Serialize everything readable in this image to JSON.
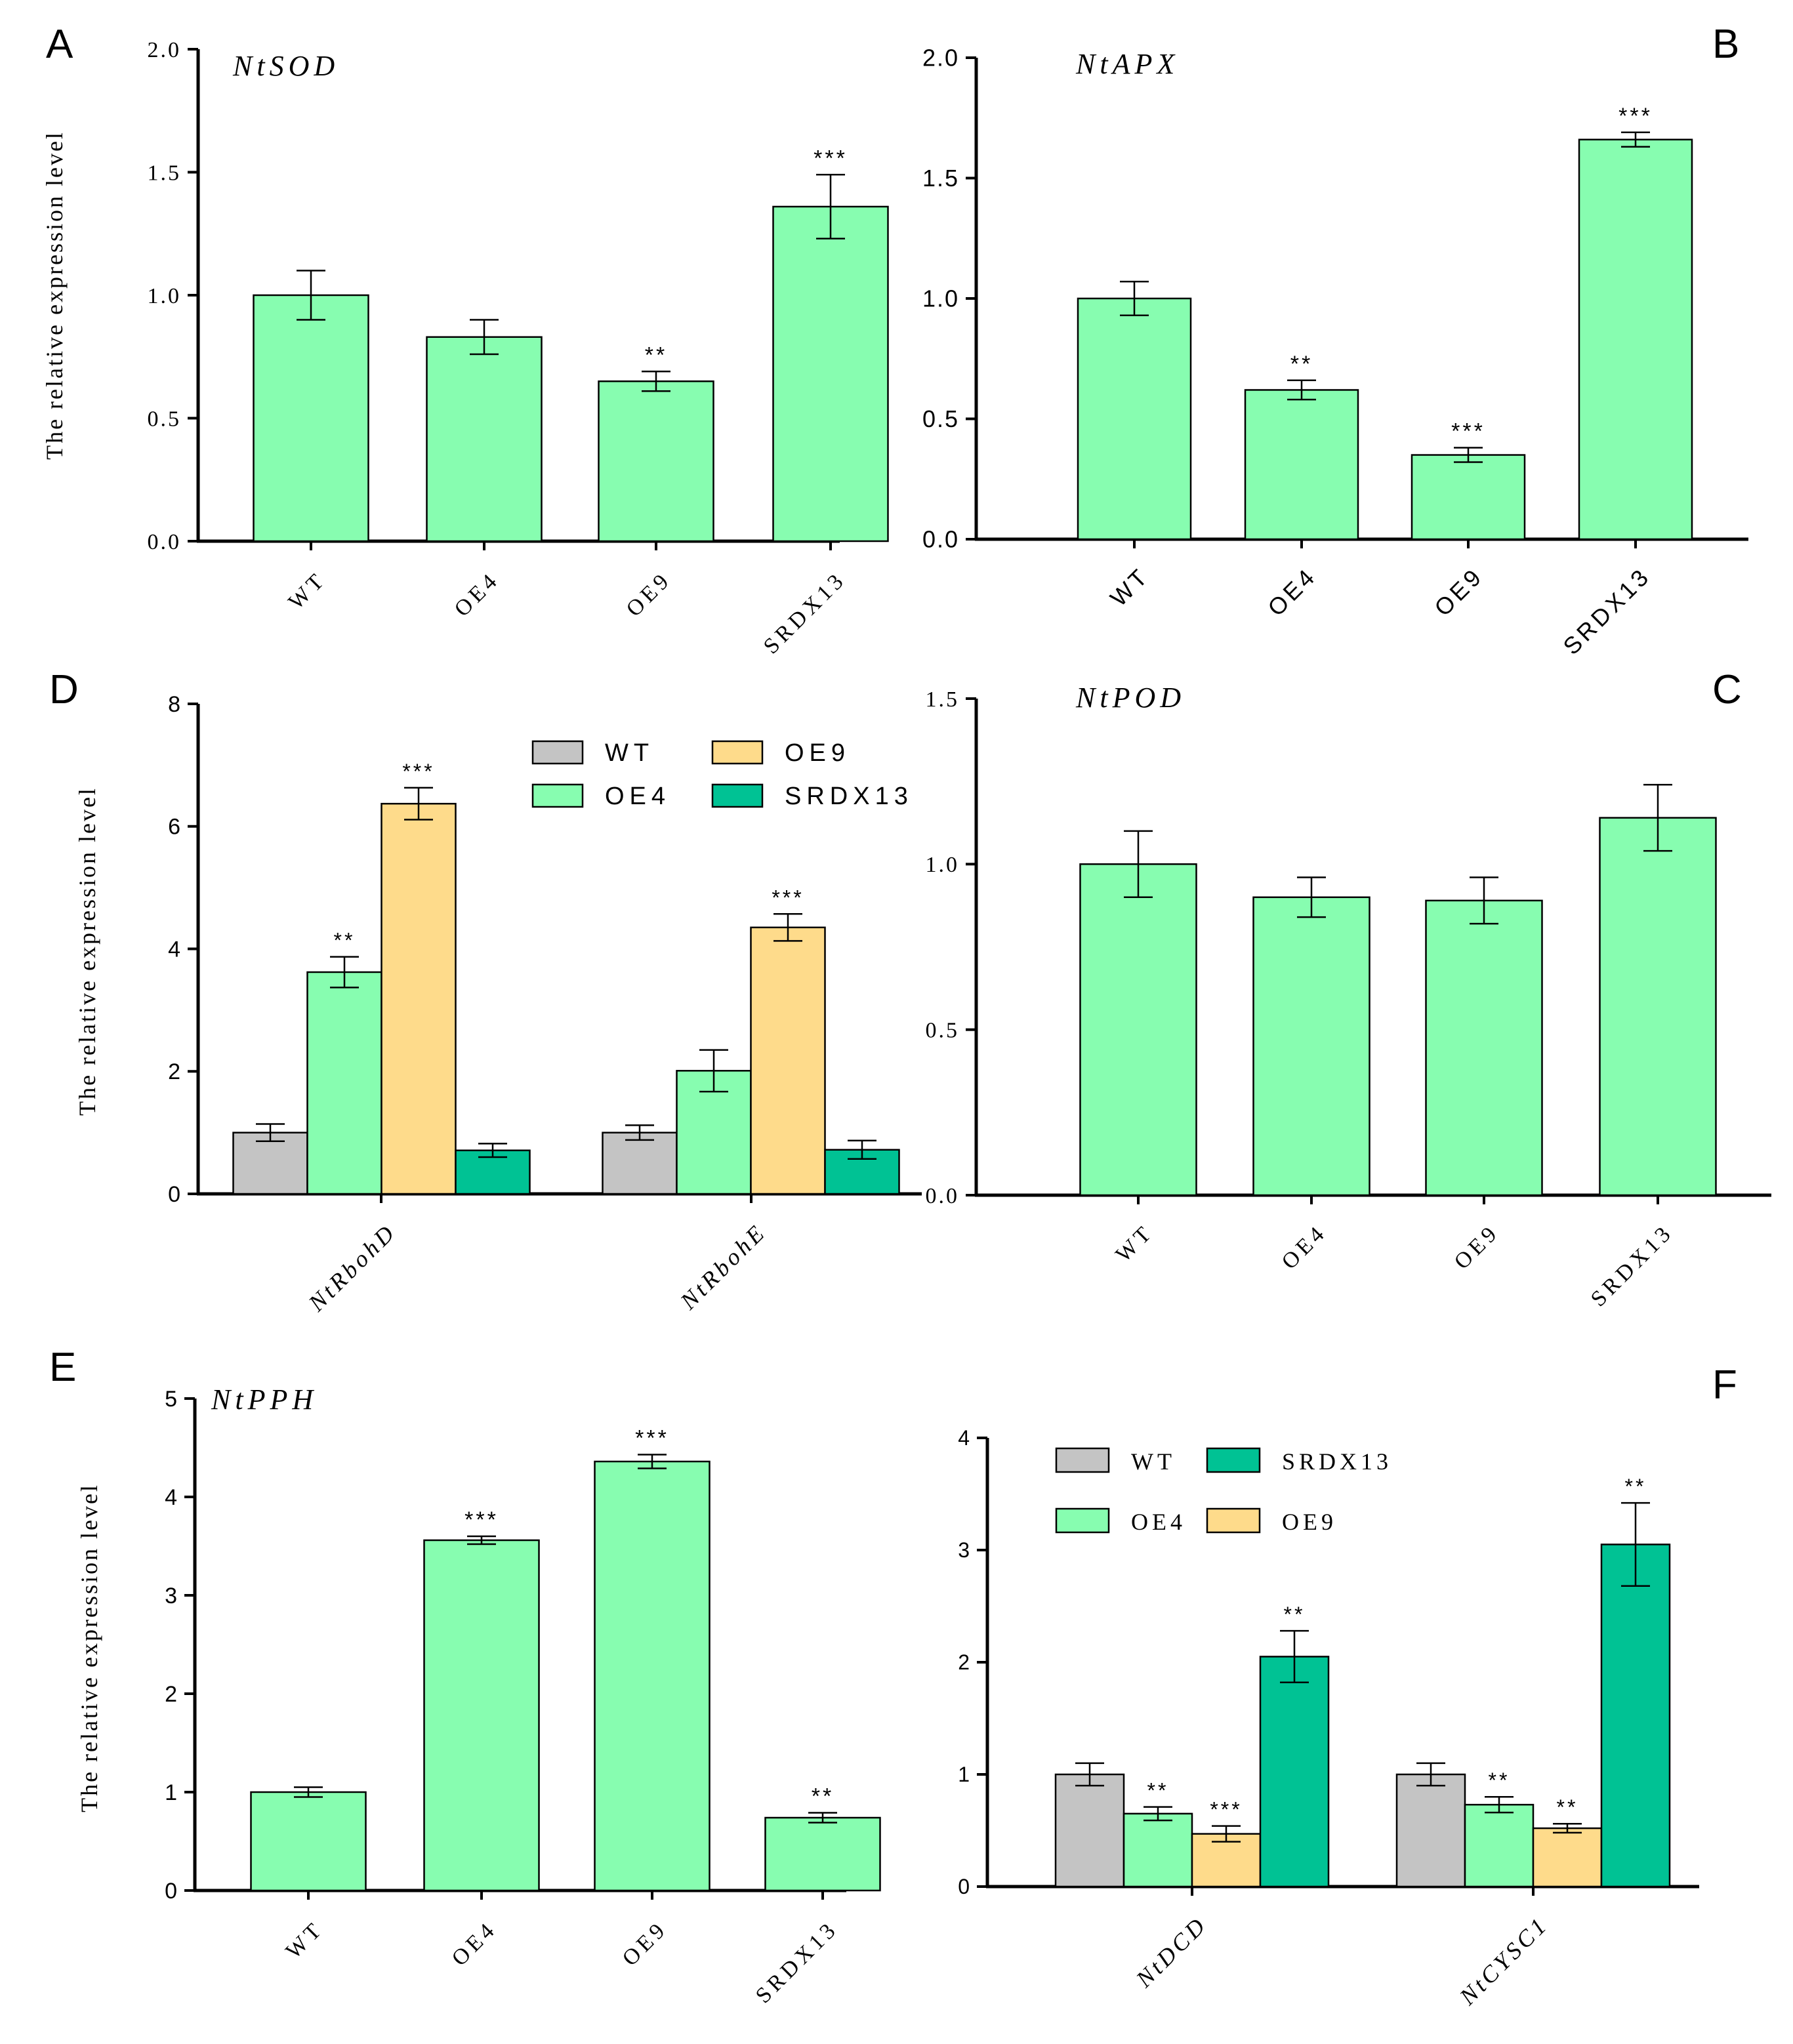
{
  "colors": {
    "wt": "#c4c4c4",
    "oe4": "#87fdb0",
    "oe9": "#fedb8b",
    "srdx13": "#00c294",
    "axis": "#000000"
  },
  "chart_data": [
    {
      "id": "A",
      "panel_label": "A",
      "type": "bar",
      "title": "NtSOD",
      "ylabel": "The relative expression level",
      "categories": [
        "WT",
        "OE4",
        "OE9",
        "SRDX13"
      ],
      "values": [
        1.0,
        0.83,
        0.65,
        1.36
      ],
      "errors": [
        0.1,
        0.07,
        0.04,
        0.13
      ],
      "significance": [
        "",
        "",
        "**",
        "***"
      ],
      "ylim": [
        0,
        2.0
      ],
      "yticks": [
        "0.0",
        "0.5",
        "1.0",
        "1.5",
        "2.0"
      ],
      "ytick_values": [
        0,
        0.5,
        1.0,
        1.5,
        2.0
      ]
    },
    {
      "id": "B",
      "panel_label": "B",
      "type": "bar",
      "title": "NtAPX",
      "ylabel": "",
      "categories": [
        "WT",
        "OE4",
        "OE9",
        "SRDX13"
      ],
      "values": [
        1.0,
        0.62,
        0.35,
        1.66
      ],
      "errors": [
        0.07,
        0.04,
        0.03,
        0.03
      ],
      "significance": [
        "",
        "**",
        "***",
        "***"
      ],
      "ylim": [
        0,
        2.0
      ],
      "yticks": [
        "0.0",
        "0.5",
        "1.0",
        "1.5",
        "2.0"
      ],
      "ytick_values": [
        0,
        0.5,
        1.0,
        1.5,
        2.0
      ]
    },
    {
      "id": "D",
      "panel_label": "D",
      "type": "bar",
      "title": "",
      "ylabel": "The relative expression level",
      "categories": [
        "NtRbohD",
        "NtRbohE"
      ],
      "series": [
        {
          "name": "WT",
          "values": [
            1.0,
            1.0
          ],
          "errors": [
            0.14,
            0.12
          ],
          "significance": [
            "",
            ""
          ]
        },
        {
          "name": "OE4",
          "values": [
            3.62,
            2.01
          ],
          "errors": [
            0.25,
            0.34
          ],
          "significance": [
            "**",
            ""
          ]
        },
        {
          "name": "OE9",
          "values": [
            6.37,
            4.35
          ],
          "errors": [
            0.26,
            0.22
          ],
          "significance": [
            "***",
            "***"
          ]
        },
        {
          "name": "SRDX13",
          "values": [
            0.71,
            0.72
          ],
          "errors": [
            0.11,
            0.15
          ],
          "significance": [
            "",
            ""
          ]
        }
      ],
      "legend": [
        "WT",
        "OE9",
        "OE4",
        "SRDX13"
      ],
      "ylim": [
        0,
        8
      ],
      "yticks": [
        "0",
        "2",
        "4",
        "6",
        "8"
      ],
      "ytick_values": [
        0,
        2,
        4,
        6,
        8
      ]
    },
    {
      "id": "C",
      "panel_label": "C",
      "type": "bar",
      "title": "NtPOD",
      "ylabel": "",
      "categories": [
        "WT",
        "OE4",
        "OE9",
        "SRDX13"
      ],
      "values": [
        1.0,
        0.9,
        0.89,
        1.14
      ],
      "errors": [
        0.1,
        0.06,
        0.07,
        0.1
      ],
      "significance": [
        "",
        "",
        "",
        ""
      ],
      "ylim": [
        0,
        1.5
      ],
      "yticks": [
        "0.0",
        "0.5",
        "1.0",
        "1.5"
      ],
      "ytick_values": [
        0,
        0.5,
        1.0,
        1.5
      ]
    },
    {
      "id": "E",
      "panel_label": "E",
      "type": "bar",
      "title": "NtPPH",
      "ylabel": "The relative expression level",
      "categories": [
        "WT",
        "OE4",
        "OE9",
        "SRDX13"
      ],
      "values": [
        1.0,
        3.56,
        4.36,
        0.74
      ],
      "errors": [
        0.05,
        0.04,
        0.07,
        0.05
      ],
      "significance": [
        "",
        "***",
        "***",
        "**"
      ],
      "ylim": [
        0,
        5
      ],
      "yticks": [
        "0",
        "1",
        "2",
        "3",
        "4",
        "5"
      ],
      "ytick_values": [
        0,
        1,
        2,
        3,
        4,
        5
      ]
    },
    {
      "id": "F",
      "panel_label": "F",
      "type": "bar",
      "title": "",
      "ylabel": "",
      "categories": [
        "NtDCD",
        "NtCYSC1"
      ],
      "series": [
        {
          "name": "WT",
          "values": [
            1.0,
            1.0
          ],
          "errors": [
            0.1,
            0.1
          ],
          "significance": [
            "",
            ""
          ]
        },
        {
          "name": "OE4",
          "values": [
            0.65,
            0.73
          ],
          "errors": [
            0.06,
            0.07
          ],
          "significance": [
            "**",
            "**"
          ]
        },
        {
          "name": "OE9",
          "values": [
            0.47,
            0.52
          ],
          "errors": [
            0.07,
            0.04
          ],
          "significance": [
            "***",
            "**"
          ]
        },
        {
          "name": "SRDX13",
          "values": [
            2.05,
            3.05
          ],
          "errors": [
            0.23,
            0.37
          ],
          "significance": [
            "**",
            "**"
          ]
        }
      ],
      "legend": [
        "WT",
        "SRDX13",
        "OE4",
        "OE9"
      ],
      "ylim": [
        0,
        4
      ],
      "yticks": [
        "0",
        "1",
        "2",
        "3",
        "4"
      ],
      "ytick_values": [
        0,
        1,
        2,
        3,
        4
      ]
    }
  ]
}
